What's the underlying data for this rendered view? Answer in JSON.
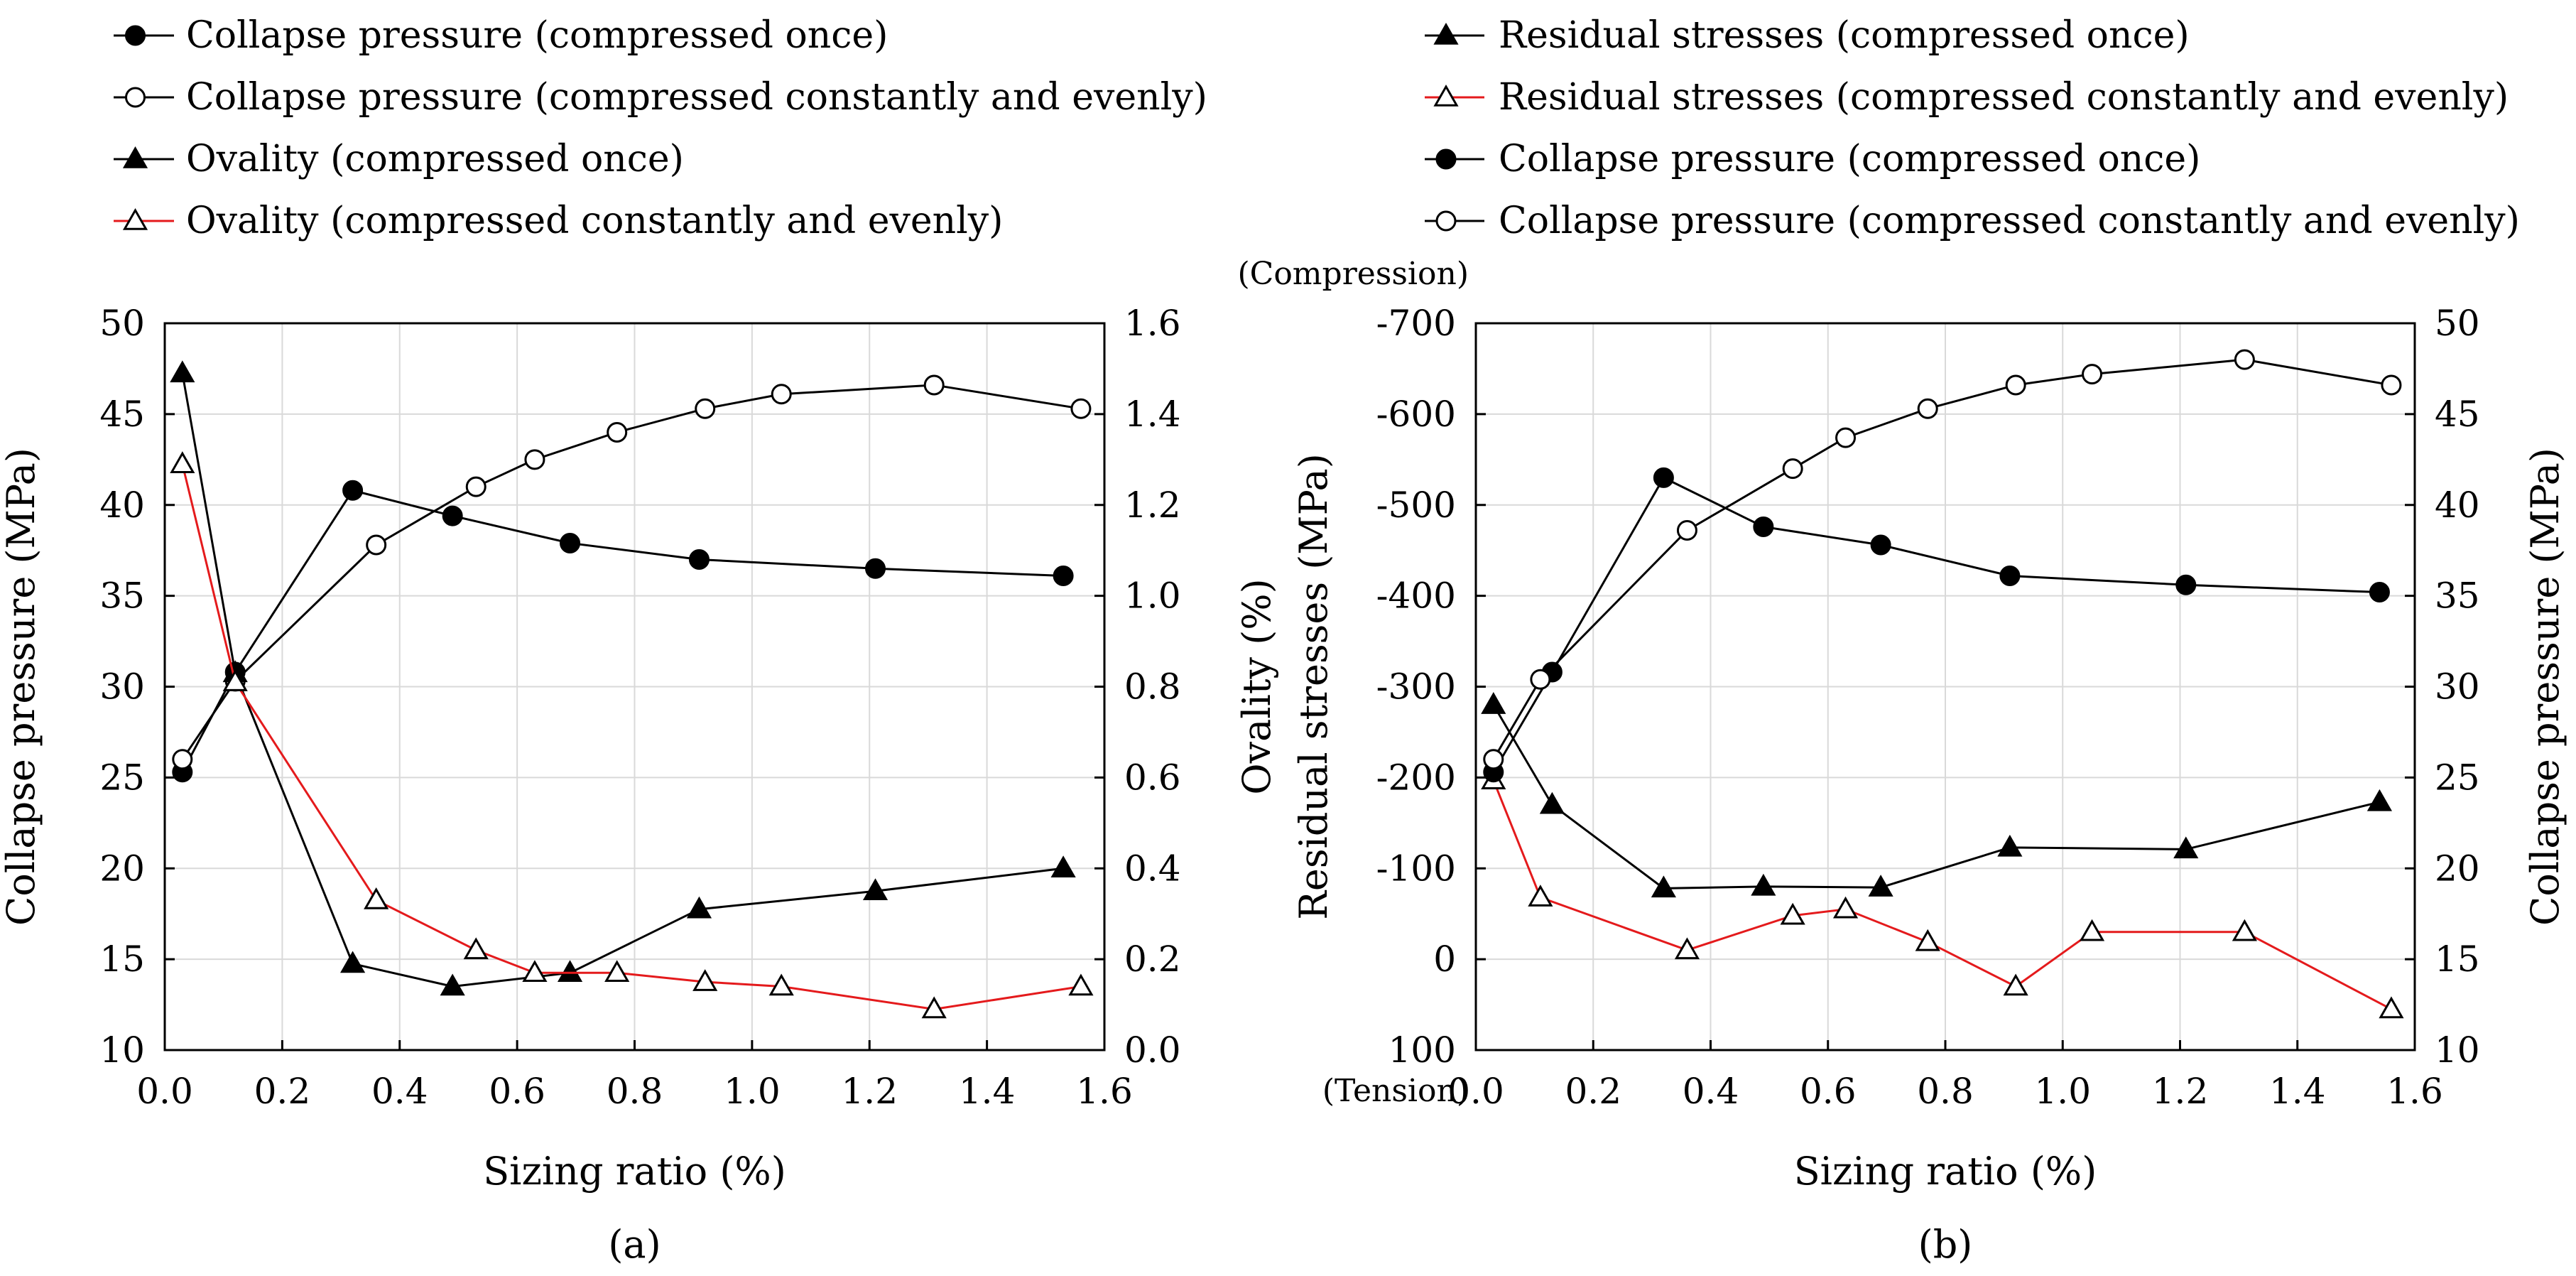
{
  "chart_data": [
    {
      "type": "line",
      "panel_label": "(a)",
      "xlabel": "Sizing ratio (%)",
      "ylabel": "Collapse pressure (MPa)",
      "y2label": "Ovality (%)",
      "xlim": [
        0.0,
        1.6
      ],
      "ylim": [
        10,
        50
      ],
      "y2lim": [
        0.0,
        1.6
      ],
      "x_ticks": [
        "0.0",
        "0.2",
        "0.4",
        "0.6",
        "0.8",
        "1.0",
        "1.2",
        "1.4",
        "1.6"
      ],
      "y_ticks": [
        "10",
        "15",
        "20",
        "25",
        "30",
        "35",
        "40",
        "45",
        "50"
      ],
      "y2_ticks": [
        "0.0",
        "0.2",
        "0.4",
        "0.6",
        "0.8",
        "1.0",
        "1.2",
        "1.4",
        "1.6"
      ],
      "grid": true,
      "legend": [
        "Collapse pressure (compressed once)",
        "Collapse pressure (compressed constantly and evenly)",
        "Ovality (compressed once)",
        "Ovality (compressed constantly and evenly)"
      ],
      "series": [
        {
          "name": "Collapse pressure (compressed once)",
          "axis": "left",
          "marker": "circle-filled",
          "color": "#000000",
          "x": [
            0.03,
            0.12,
            0.32,
            0.49,
            0.69,
            0.91,
            1.21,
            1.53
          ],
          "y": [
            25.3,
            30.8,
            40.8,
            39.4,
            37.9,
            37.0,
            36.5,
            36.1
          ]
        },
        {
          "name": "Collapse pressure (compressed constantly and evenly)",
          "axis": "left",
          "marker": "circle-open",
          "color": "#000000",
          "x": [
            0.03,
            0.12,
            0.36,
            0.53,
            0.63,
            0.77,
            0.92,
            1.05,
            1.31,
            1.56
          ],
          "y": [
            26.0,
            30.3,
            37.8,
            41.0,
            42.5,
            44.0,
            45.3,
            46.1,
            46.6,
            45.3
          ]
        },
        {
          "name": "Ovality (compressed once)",
          "axis": "right",
          "marker": "triangle-filled",
          "color": "#000000",
          "x": [
            0.03,
            0.12,
            0.32,
            0.49,
            0.69,
            0.91,
            1.21,
            1.53
          ],
          "y": [
            1.49,
            0.83,
            0.19,
            0.14,
            0.17,
            0.31,
            0.35,
            0.4
          ]
        },
        {
          "name": "Ovality (compressed constantly and evenly)",
          "axis": "right",
          "marker": "triangle-open",
          "color": "#e41a1c",
          "x": [
            0.03,
            0.12,
            0.36,
            0.53,
            0.63,
            0.77,
            0.92,
            1.05,
            1.31,
            1.56
          ],
          "y": [
            1.29,
            0.81,
            0.33,
            0.22,
            0.17,
            0.17,
            0.15,
            0.14,
            0.09,
            0.14
          ]
        }
      ]
    },
    {
      "type": "line",
      "panel_label": "(b)",
      "xlabel": "Sizing ratio (%)",
      "ylabel": "Residual stresses (MPa)",
      "y2label": "Collapse pressure (MPa)",
      "xlim": [
        0.0,
        1.6
      ],
      "ylim": [
        100,
        -700
      ],
      "y2lim": [
        10,
        50
      ],
      "x_ticks": [
        "0.0",
        "0.2",
        "0.4",
        "0.6",
        "0.8",
        "1.0",
        "1.2",
        "1.4",
        "1.6"
      ],
      "y_ticks": [
        "100",
        "0",
        "-100",
        "-200",
        "-300",
        "-400",
        "-500",
        "-600",
        "-700"
      ],
      "y2_ticks": [
        "10",
        "15",
        "20",
        "25",
        "30",
        "35",
        "40",
        "45",
        "50"
      ],
      "y_top_note": "(Compression)",
      "y_bottom_note": "(Tension)",
      "grid": true,
      "legend": [
        "Residual stresses (compressed once)",
        "Residual stresses (compressed constantly and evenly)",
        "Collapse pressure (compressed once)",
        "Collapse pressure (compressed constantly and evenly)"
      ],
      "series": [
        {
          "name": "Residual stresses (compressed once)",
          "axis": "left",
          "marker": "triangle-filled",
          "color": "#000000",
          "x": [
            0.03,
            0.13,
            0.32,
            0.49,
            0.69,
            0.91,
            1.21,
            1.54
          ],
          "y": [
            -280,
            -170,
            -78,
            -80,
            -79,
            -123,
            -121,
            -173
          ]
        },
        {
          "name": "Residual stresses (compressed constantly and evenly)",
          "axis": "left",
          "marker": "triangle-open",
          "color": "#e41a1c",
          "x": [
            0.03,
            0.11,
            0.36,
            0.54,
            0.63,
            0.77,
            0.92,
            1.05,
            1.31,
            1.56
          ],
          "y": [
            -197,
            -68,
            -10,
            -48,
            -55,
            -19,
            30,
            -30,
            -30,
            55
          ]
        },
        {
          "name": "Collapse pressure (compressed once)",
          "axis": "right",
          "marker": "circle-filled",
          "color": "#000000",
          "x": [
            0.03,
            0.13,
            0.32,
            0.49,
            0.69,
            0.91,
            1.21,
            1.54
          ],
          "y": [
            25.3,
            30.8,
            41.5,
            38.8,
            37.8,
            36.1,
            35.6,
            35.2
          ]
        },
        {
          "name": "Collapse pressure (compressed constantly and evenly)",
          "axis": "right",
          "marker": "circle-open",
          "color": "#000000",
          "x": [
            0.03,
            0.11,
            0.36,
            0.54,
            0.63,
            0.77,
            0.92,
            1.05,
            1.31,
            1.56
          ],
          "y": [
            26.0,
            30.4,
            38.6,
            42.0,
            43.7,
            45.3,
            46.6,
            47.2,
            48.0,
            46.6
          ]
        }
      ]
    }
  ]
}
